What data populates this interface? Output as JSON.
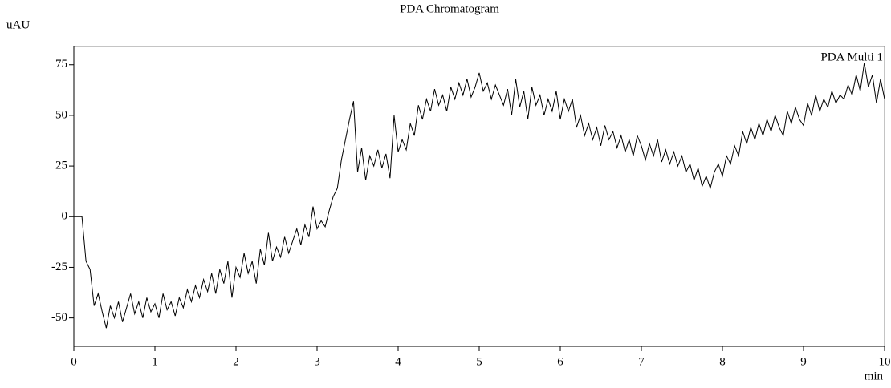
{
  "chart_data": {
    "type": "line",
    "title": "PDA Chromatogram",
    "y_unit": "uAU",
    "x_unit": "min",
    "xlim": [
      0,
      10
    ],
    "xticks": [
      0,
      1,
      2,
      3,
      4,
      5,
      6,
      7,
      8,
      9,
      10
    ],
    "ylim": [
      -64,
      84
    ],
    "yticks": [
      -50,
      -25,
      0,
      25,
      50,
      75
    ],
    "x": [
      0,
      0.05,
      0.1,
      0.15,
      0.2,
      0.25,
      0.3,
      0.35,
      0.4,
      0.45,
      0.5,
      0.55,
      0.6,
      0.65,
      0.7,
      0.75,
      0.8,
      0.85,
      0.9,
      0.95,
      1,
      1.05,
      1.1,
      1.15,
      1.2,
      1.25,
      1.3,
      1.35,
      1.4,
      1.45,
      1.5,
      1.55,
      1.6,
      1.65,
      1.7,
      1.75,
      1.8,
      1.85,
      1.9,
      1.95,
      2,
      2.05,
      2.1,
      2.15,
      2.2,
      2.25,
      2.3,
      2.35,
      2.4,
      2.45,
      2.5,
      2.55,
      2.6,
      2.65,
      2.7,
      2.75,
      2.8,
      2.85,
      2.9,
      2.95,
      3,
      3.05,
      3.1,
      3.15,
      3.2,
      3.25,
      3.3,
      3.35,
      3.4,
      3.45,
      3.5,
      3.55,
      3.6,
      3.65,
      3.7,
      3.75,
      3.8,
      3.85,
      3.9,
      3.95,
      4,
      4.05,
      4.1,
      4.15,
      4.2,
      4.25,
      4.3,
      4.35,
      4.4,
      4.45,
      4.5,
      4.55,
      4.6,
      4.65,
      4.7,
      4.75,
      4.8,
      4.85,
      4.9,
      4.95,
      5,
      5.05,
      5.1,
      5.15,
      5.2,
      5.25,
      5.3,
      5.35,
      5.4,
      5.45,
      5.5,
      5.55,
      5.6,
      5.65,
      5.7,
      5.75,
      5.8,
      5.85,
      5.9,
      5.95,
      6,
      6.05,
      6.1,
      6.15,
      6.2,
      6.25,
      6.3,
      6.35,
      6.4,
      6.45,
      6.5,
      6.55,
      6.6,
      6.65,
      6.7,
      6.75,
      6.8,
      6.85,
      6.9,
      6.95,
      7,
      7.05,
      7.1,
      7.15,
      7.2,
      7.25,
      7.3,
      7.35,
      7.4,
      7.45,
      7.5,
      7.55,
      7.6,
      7.65,
      7.7,
      7.75,
      7.8,
      7.85,
      7.9,
      7.95,
      8,
      8.05,
      8.1,
      8.15,
      8.2,
      8.25,
      8.3,
      8.35,
      8.4,
      8.45,
      8.5,
      8.55,
      8.6,
      8.65,
      8.7,
      8.75,
      8.8,
      8.85,
      8.9,
      8.95,
      9,
      9.05,
      9.1,
      9.15,
      9.2,
      9.25,
      9.3,
      9.35,
      9.4,
      9.45,
      9.5,
      9.55,
      9.6,
      9.65,
      9.7,
      9.75,
      9.8,
      9.85,
      9.9,
      9.95,
      10
    ],
    "series": [
      {
        "name": "PDA Multi 1",
        "color": "#000000",
        "values": [
          0,
          0,
          0,
          -22,
          -26,
          -44,
          -38,
          -47,
          -55,
          -44,
          -50,
          -42,
          -52,
          -45,
          -38,
          -48,
          -42,
          -50,
          -40,
          -47,
          -43,
          -50,
          -38,
          -46,
          -42,
          -49,
          -40,
          -45,
          -36,
          -42,
          -34,
          -40,
          -31,
          -37,
          -28,
          -38,
          -26,
          -33,
          -22,
          -40,
          -25,
          -30,
          -18,
          -28,
          -22,
          -33,
          -16,
          -24,
          -8,
          -22,
          -15,
          -20,
          -10,
          -18,
          -12,
          -6,
          -14,
          -4,
          -10,
          5,
          -6,
          -2,
          -5,
          3,
          10,
          14,
          28,
          38,
          48,
          57,
          22,
          34,
          18,
          30,
          25,
          33,
          24,
          31,
          19,
          50,
          32,
          38,
          33,
          46,
          40,
          55,
          48,
          58,
          52,
          63,
          55,
          60,
          52,
          64,
          58,
          66,
          60,
          68,
          59,
          64,
          71,
          62,
          66,
          58,
          65,
          60,
          55,
          63,
          50,
          68,
          54,
          62,
          48,
          64,
          55,
          60,
          50,
          58,
          52,
          62,
          48,
          58,
          52,
          58,
          44,
          50,
          40,
          46,
          38,
          44,
          35,
          45,
          38,
          42,
          34,
          40,
          32,
          38,
          30,
          40,
          35,
          28,
          36,
          30,
          38,
          27,
          33,
          26,
          32,
          25,
          30,
          22,
          26,
          18,
          24,
          15,
          20,
          14,
          22,
          26,
          20,
          30,
          26,
          35,
          30,
          42,
          36,
          44,
          38,
          46,
          40,
          48,
          42,
          50,
          44,
          40,
          52,
          46,
          54,
          48,
          45,
          56,
          50,
          60,
          52,
          58,
          54,
          62,
          56,
          60,
          58,
          65,
          60,
          70,
          62,
          76,
          64,
          70,
          56,
          68,
          58
        ]
      }
    ]
  }
}
